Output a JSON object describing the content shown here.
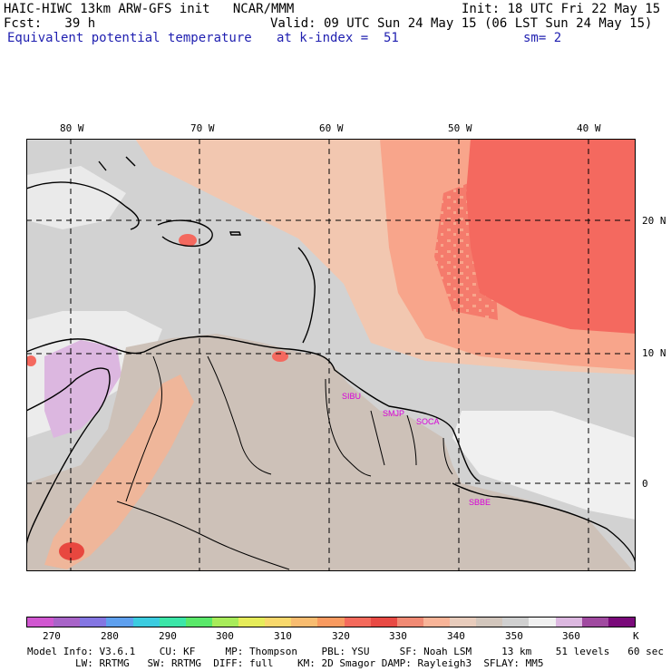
{
  "header": {
    "model_line": "HAIC-HIWC 13km ARW-GFS init   NCAR/MMM",
    "init_line": "Init: 18 UTC Fri 22 May 15",
    "fcst_line": "Fcst:   39 h",
    "valid_line": "Valid: 09 UTC Sun 24 May 15 (06 LST Sun 24 May 15)",
    "field_name": "Equivalent potential temperature",
    "level_text": "at k-index =  51",
    "smooth_text": "sm= 2"
  },
  "map": {
    "lon_labels": [
      "80 W",
      "70 W",
      "60 W",
      "50 W",
      "40 W"
    ],
    "lat_labels": [
      "20 N",
      "10 N",
      "0"
    ],
    "stations": [
      "SIBU",
      "SMJP",
      "SOCA",
      "SBBE"
    ],
    "colors": {
      "gray_light": "#d2d2d2",
      "gray_tan": "#cdc1b8",
      "peach": "#f5c4a8",
      "salmon": "#f8a58b",
      "red": "#f4695f",
      "red_dark": "#e8473f",
      "white": "#f0f0f0",
      "lavender": "#dcb7e0",
      "station_text": "#d800d8"
    }
  },
  "colorbar": {
    "swatches": [
      "#d057d0",
      "#a864c8",
      "#8476e2",
      "#5fa0ee",
      "#3ccce0",
      "#3ce6a8",
      "#5ae86a",
      "#a8ec5a",
      "#e6ec5a",
      "#f8d86c",
      "#f8bc70",
      "#f89a60",
      "#f46a5c",
      "#e84a44",
      "#f08a74",
      "#f8b498",
      "#e8ccbc",
      "#d2c6bc",
      "#d0d0d0",
      "#f0f0f0",
      "#dcb8e0",
      "#a04aa0",
      "#7a0a7a"
    ],
    "labels": [
      "270",
      "280",
      "290",
      "300",
      "310",
      "320",
      "330",
      "340",
      "350",
      "360",
      "K"
    ]
  },
  "footer": {
    "line1": "Model Info: V3.6.1    CU: KF     MP: Thompson    PBL: YSU     SF: Noah LSM     13 km    51 levels   60 sec",
    "line2": "        LW: RRTMG   SW: RRTMG  DIFF: full    KM: 2D Smagor DAMP: Rayleigh3  SFLAY: MM5"
  }
}
